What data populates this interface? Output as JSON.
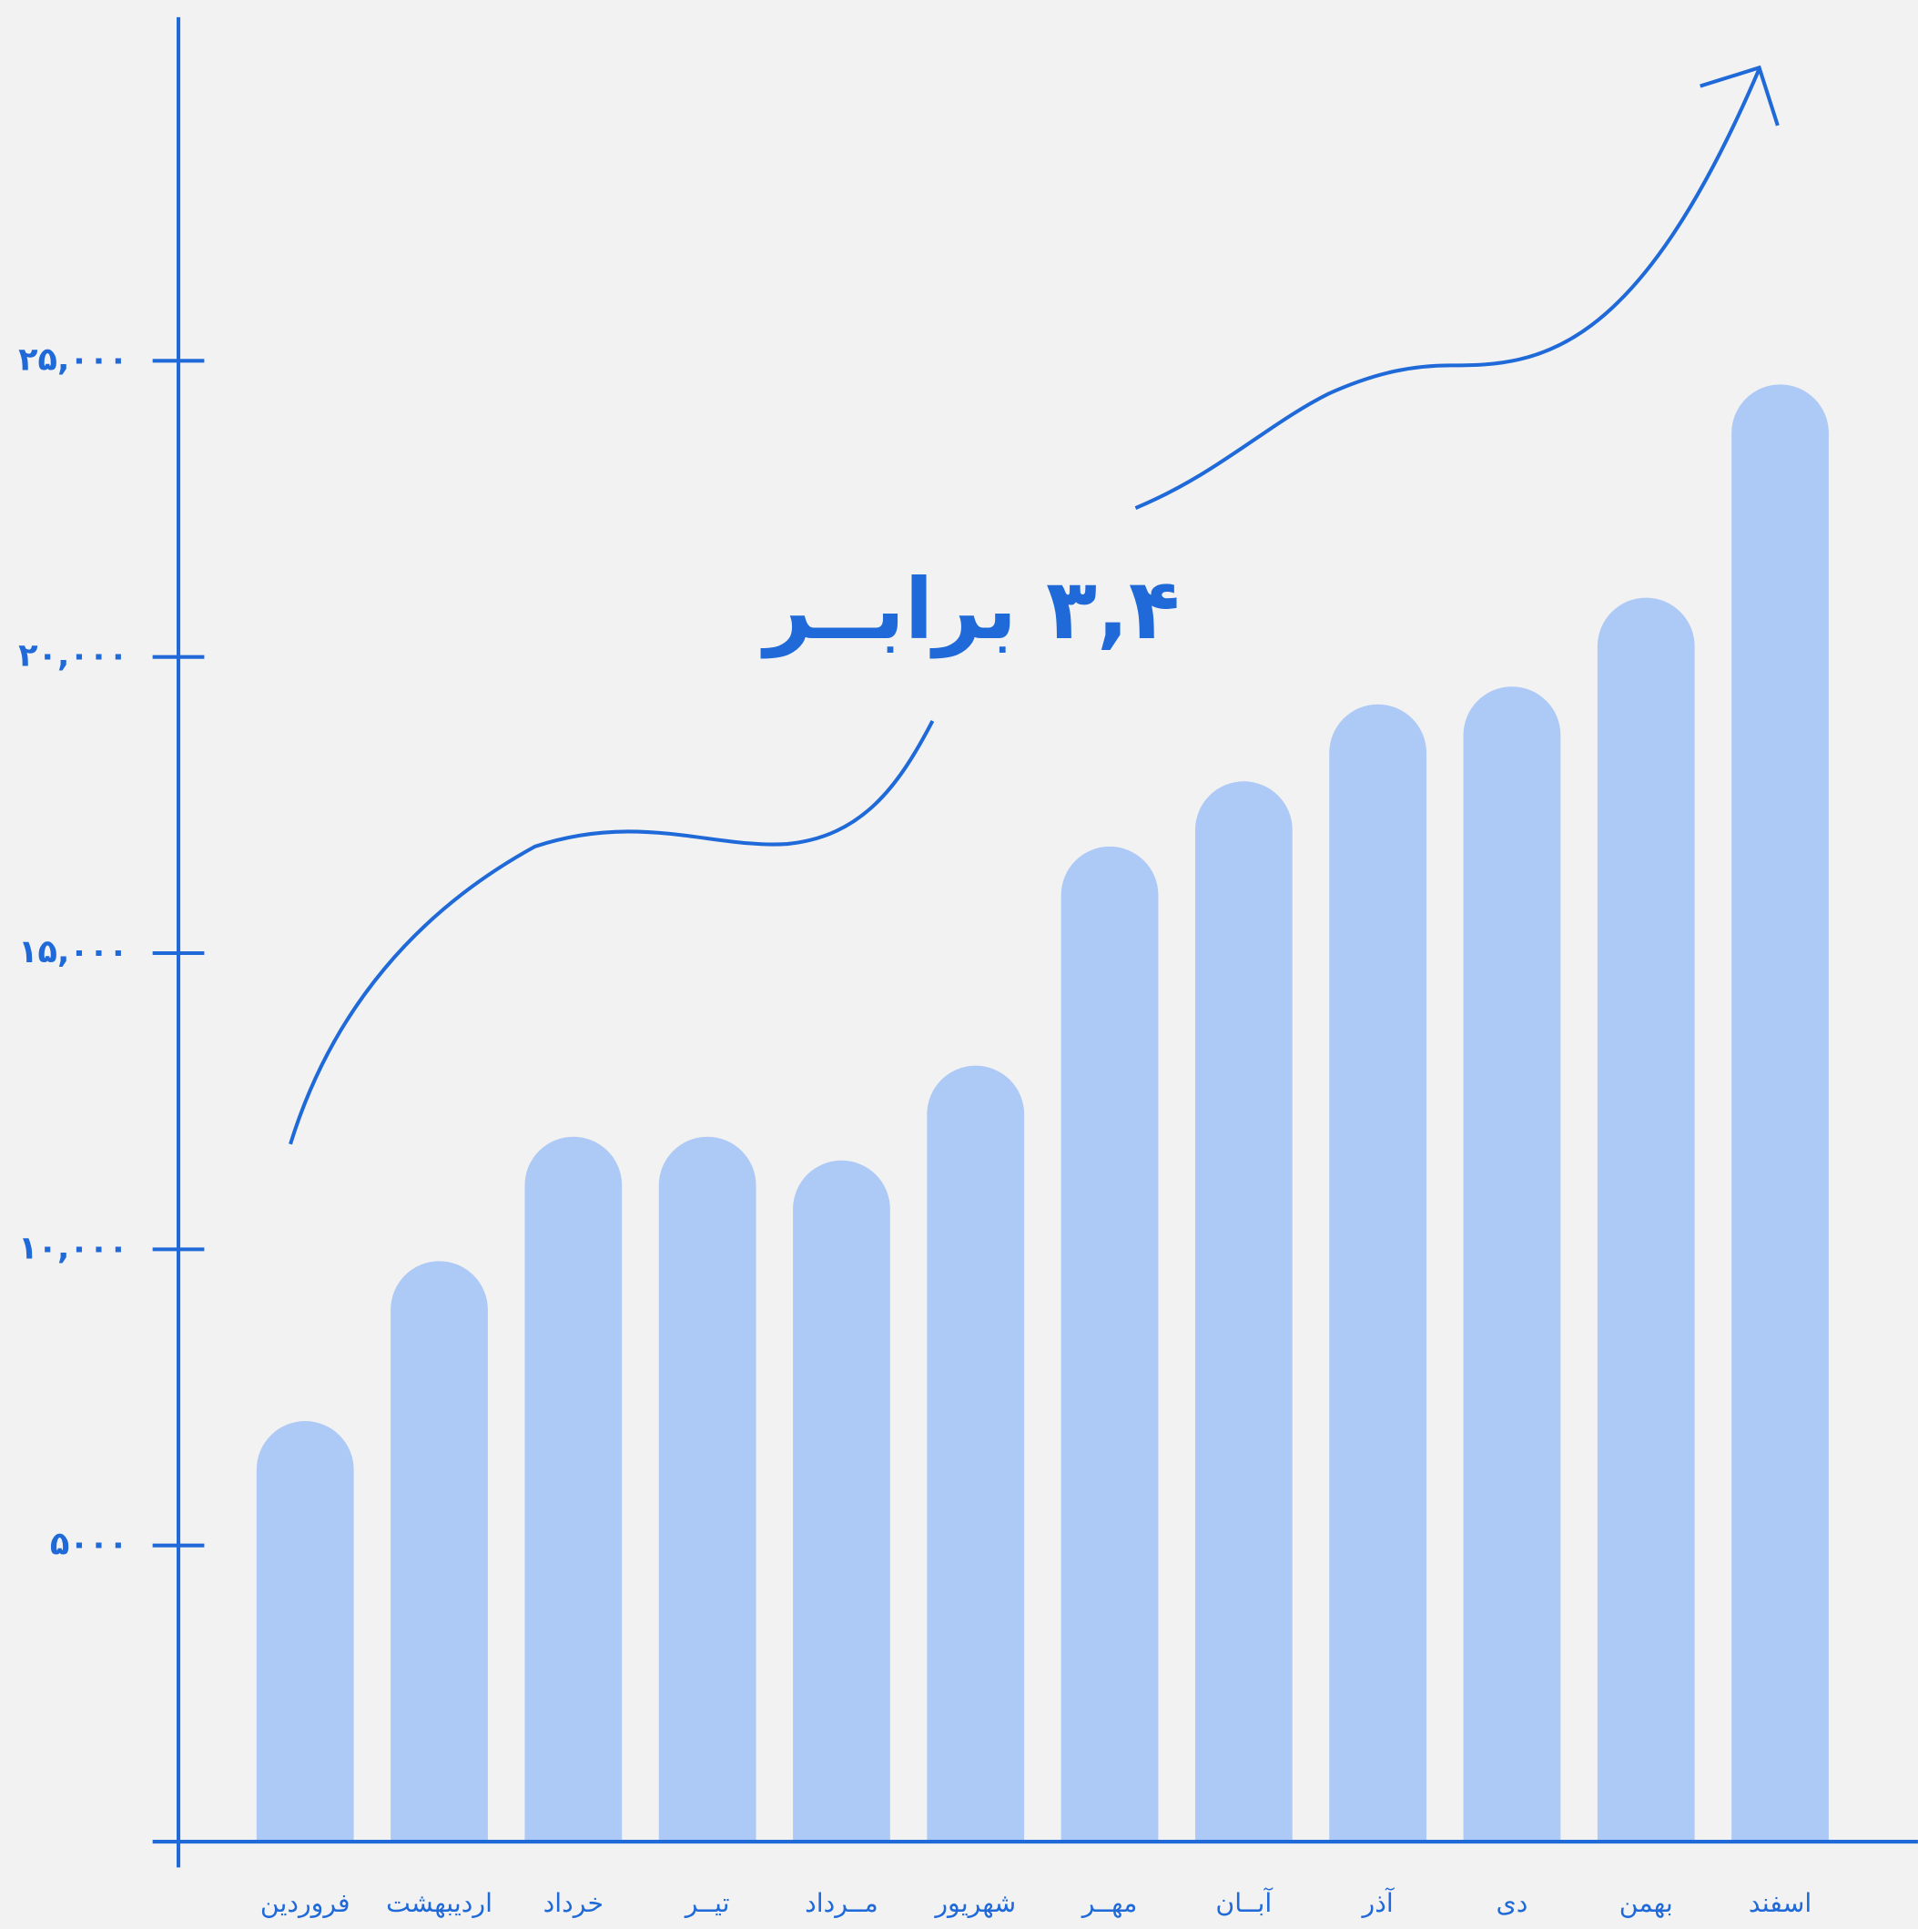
{
  "chart_data": {
    "type": "bar",
    "categories": [
      "فروردین",
      "اردیبهشت",
      "خرداد",
      "تیــر",
      "مــرداد",
      "شهریور",
      "مهــر",
      "آبــان",
      "آذر",
      "دی",
      "بهمن",
      "اسفند"
    ],
    "values": [
      7100,
      9800,
      11900,
      11900,
      11500,
      13100,
      16800,
      17900,
      19200,
      19500,
      21000,
      24600
    ],
    "color": "#adc9f5",
    "axis_color": "#1f6ad8",
    "ylim": [
      0,
      30800
    ],
    "yticks": [
      {
        "value": 5000,
        "label": "۵۰۰۰"
      },
      {
        "value": 10000,
        "label": "۱۰,۰۰۰"
      },
      {
        "value": 15000,
        "label": "۱۵,۰۰۰"
      },
      {
        "value": 20000,
        "label": "۲۰,۰۰۰"
      },
      {
        "value": 25000,
        "label": "۲۵,۰۰۰"
      }
    ],
    "annotation": "۳,۴ برابــر"
  }
}
